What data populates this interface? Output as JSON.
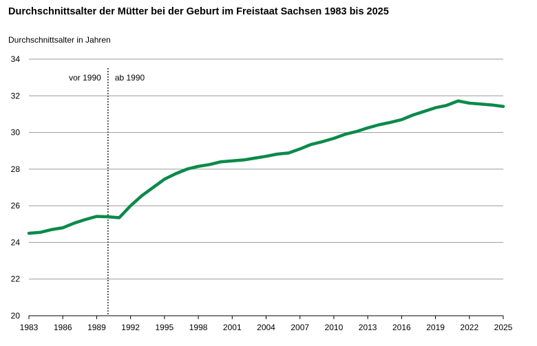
{
  "chart_data": {
    "type": "line",
    "title": "Durchschnittsalter der Mütter bei der Geburt im Freistaat Sachsen 1983 bis 2025",
    "ylabel": "Durchschnittsalter in Jahren",
    "xlabel": "",
    "xlim": [
      1983,
      2025
    ],
    "ylim": [
      20,
      34
    ],
    "x_ticks": [
      1983,
      1986,
      1989,
      1992,
      1995,
      1998,
      2001,
      2004,
      2007,
      2010,
      2013,
      2016,
      2019,
      2022,
      2025
    ],
    "y_ticks": [
      20,
      22,
      24,
      26,
      28,
      30,
      32,
      34
    ],
    "grid": "horizontal",
    "divider": {
      "x": 1990,
      "label_before": "vor 1990",
      "label_after": "ab 1990"
    },
    "series": [
      {
        "color": "#0a8a4a",
        "x": [
          1983,
          1984,
          1985,
          1986,
          1987,
          1988,
          1989,
          1990,
          1991,
          1992,
          1993,
          1994,
          1995,
          1996,
          1997,
          1998,
          1999,
          2000,
          2001,
          2002,
          2003,
          2004,
          2005,
          2006,
          2007,
          2008,
          2009,
          2010,
          2011,
          2012,
          2013,
          2014,
          2015,
          2016,
          2017,
          2018,
          2019,
          2020,
          2021,
          2022,
          2023,
          2024,
          2025
        ],
        "values": [
          24.5,
          24.55,
          24.7,
          24.8,
          25.05,
          25.25,
          25.42,
          25.4,
          25.35,
          26.0,
          26.55,
          27.0,
          27.45,
          27.75,
          28.0,
          28.15,
          28.25,
          28.4,
          28.45,
          28.5,
          28.6,
          28.7,
          28.82,
          28.88,
          29.1,
          29.35,
          29.5,
          29.68,
          29.9,
          30.05,
          30.25,
          30.42,
          30.55,
          30.7,
          30.95,
          31.15,
          31.35,
          31.48,
          31.72,
          31.6,
          31.55,
          31.5,
          31.42
        ]
      }
    ]
  }
}
